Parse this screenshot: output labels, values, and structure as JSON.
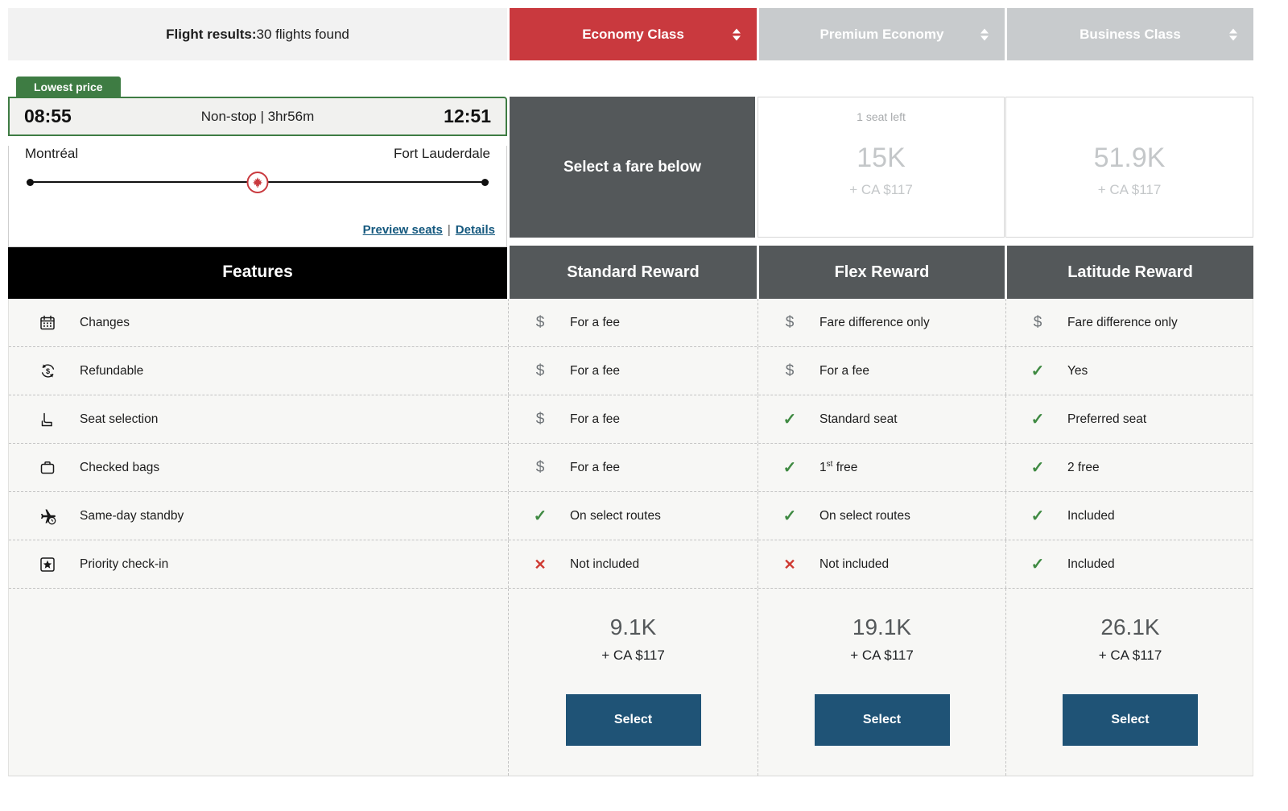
{
  "colors": {
    "economy_red": "#C9393E",
    "inactive_tab_gray": "#C8CBCD",
    "dark_slate": "#54585A",
    "badge_green": "#3E7C43",
    "check_green": "#3F8A42",
    "cross_red": "#CF3A32",
    "fee_gray": "#6F7478",
    "button_blue": "#1F5376",
    "link_blue": "#14587E",
    "row_bg": "#F7F7F5"
  },
  "header": {
    "results_label": "Flight results:",
    "results_count": "30 flights found",
    "tabs": [
      {
        "label": "Economy Class",
        "active": true
      },
      {
        "label": "Premium Economy",
        "active": false
      },
      {
        "label": "Business Class",
        "active": false
      }
    ]
  },
  "flight": {
    "badge": "Lowest price",
    "departure_time": "08:55",
    "stops_duration": "Non-stop | 3hr56m",
    "arrival_time": "12:51",
    "origin": "Montréal",
    "destination": "Fort Lauderdale",
    "preview_seats_link": "Preview seats",
    "links_divider": "|",
    "details_link": "Details"
  },
  "cabin_summary": {
    "economy_prompt": "Select a fare below",
    "premium_economy": {
      "seats_note": "1 seat left",
      "points": "15K",
      "cash": "+ CA $117"
    },
    "business": {
      "seats_note": "",
      "points": "51.9K",
      "cash": "+ CA $117"
    }
  },
  "fare_table": {
    "features_header": "Features",
    "columns": [
      "Standard Reward",
      "Flex Reward",
      "Latitude Reward"
    ],
    "rows": [
      {
        "feature": "Changes",
        "icon": "calendar-icon",
        "values": [
          {
            "icon": "fee",
            "text": "For a fee"
          },
          {
            "icon": "fee",
            "text": "Fare difference only"
          },
          {
            "icon": "fee",
            "text": "Fare difference only"
          }
        ]
      },
      {
        "feature": "Refundable",
        "icon": "refund-icon",
        "values": [
          {
            "icon": "fee",
            "text": "For a fee"
          },
          {
            "icon": "fee",
            "text": "For a fee"
          },
          {
            "icon": "check",
            "text": "Yes"
          }
        ]
      },
      {
        "feature": "Seat selection",
        "icon": "seat-icon",
        "values": [
          {
            "icon": "fee",
            "text": "For a fee"
          },
          {
            "icon": "check",
            "text": "Standard seat"
          },
          {
            "icon": "check",
            "text": "Preferred seat"
          }
        ]
      },
      {
        "feature": "Checked bags",
        "icon": "bag-icon",
        "values": [
          {
            "icon": "fee",
            "text": "For a fee"
          },
          {
            "icon": "check",
            "parts": {
              "pre": "1",
              "sup": "st",
              "post": " free"
            }
          },
          {
            "icon": "check",
            "text": "2 free"
          }
        ]
      },
      {
        "feature": "Same-day standby",
        "icon": "standby-plane-icon",
        "values": [
          {
            "icon": "check",
            "text": "On select routes"
          },
          {
            "icon": "check",
            "text": "On select routes"
          },
          {
            "icon": "check",
            "text": "Included"
          }
        ]
      },
      {
        "feature": "Priority check-in",
        "icon": "priority-star-icon",
        "values": [
          {
            "icon": "cross",
            "text": "Not included"
          },
          {
            "icon": "cross",
            "text": "Not included"
          },
          {
            "icon": "check",
            "text": "Included"
          }
        ]
      }
    ],
    "pricing": [
      {
        "points": "9.1K",
        "cash": "+ CA $117",
        "button": "Select"
      },
      {
        "points": "19.1K",
        "cash": "+ CA $117",
        "button": "Select"
      },
      {
        "points": "26.1K",
        "cash": "+ CA $117",
        "button": "Select"
      }
    ]
  }
}
